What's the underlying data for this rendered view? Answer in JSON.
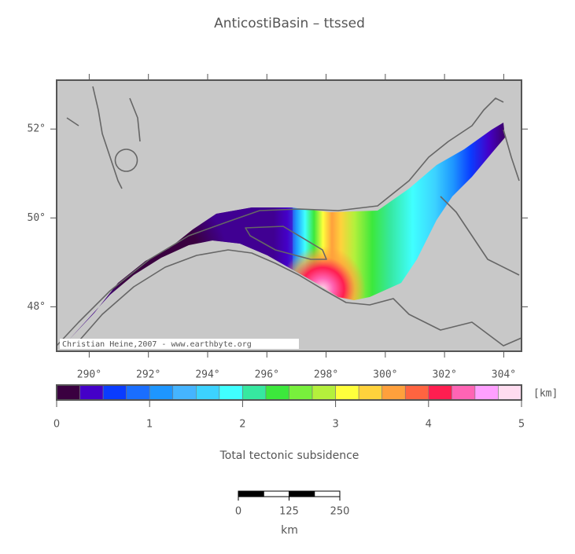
{
  "header": {
    "title": "AnticostiBasin – ttssed"
  },
  "map": {
    "credit": "Christian Heine,2007 - www.earthbyte.org",
    "lonlim": [
      288.9,
      304.6
    ],
    "latlim": [
      47.0,
      53.1
    ],
    "lonticks": [
      {
        "value": 290,
        "label": "290°"
      },
      {
        "value": 292,
        "label": "292°"
      },
      {
        "value": 294,
        "label": "294°"
      },
      {
        "value": 296,
        "label": "296°"
      },
      {
        "value": 298,
        "label": "298°"
      },
      {
        "value": 300,
        "label": "300°"
      },
      {
        "value": 302,
        "label": "302°"
      },
      {
        "value": 304,
        "label": "304°"
      }
    ],
    "latticks": [
      {
        "value": 48,
        "label": "48°"
      },
      {
        "value": 50,
        "label": "50°"
      },
      {
        "value": 52,
        "label": "52°"
      }
    ]
  },
  "colorbar": {
    "label": "Total tectonic subsidence",
    "unit": "[km]",
    "lim": [
      0,
      5
    ],
    "ticks": [
      0,
      1,
      2,
      3,
      4,
      5
    ],
    "colors": [
      "#3a0040",
      "#4400c8",
      "#0a3cff",
      "#1a6eff",
      "#1e96ff",
      "#45b4ff",
      "#3cd2ff",
      "#40ffff",
      "#36e8a0",
      "#3ce83c",
      "#78f03c",
      "#b4f03c",
      "#ffff3c",
      "#ffd23c",
      "#ffa03c",
      "#ff6440",
      "#ff1e50",
      "#ff64b4",
      "#ffa0ff",
      "#ffdcf0"
    ]
  },
  "scalebar": {
    "ticks": [
      0,
      125,
      250
    ],
    "unit": "km"
  }
}
